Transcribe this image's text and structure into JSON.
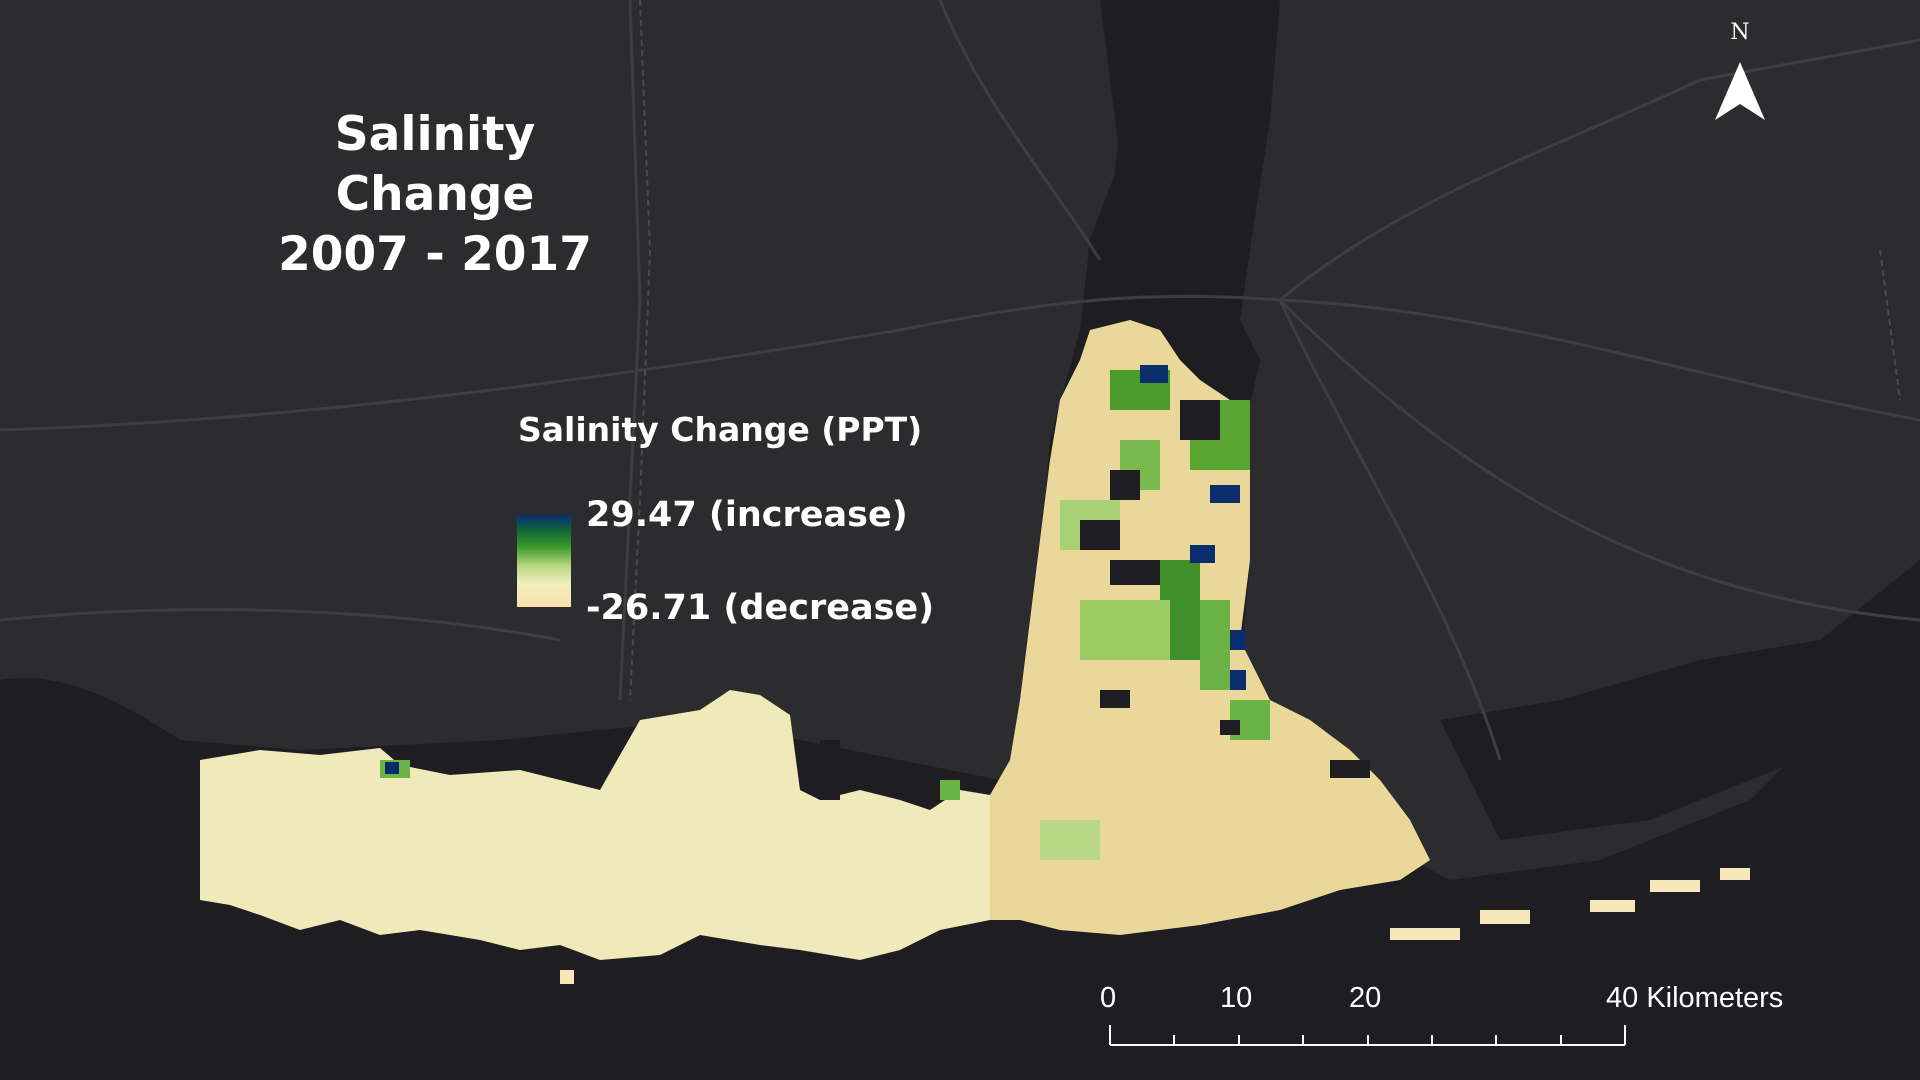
{
  "map": {
    "title_line1": "Salinity Change",
    "title_line2": "2007 - 2017",
    "colors": {
      "background_land": "#2c2c2e",
      "water": "#1e1e22",
      "roads": "#3e3e42",
      "borders": "#4a4a50",
      "ramp_high": "#0b2d6e",
      "ramp_mid": "#3f9a2a",
      "ramp_low": "#fbe0ad"
    }
  },
  "legend": {
    "title": "Salinity Change (PPT)",
    "high_label": "29.47 (increase)",
    "low_label": "-26.71 (decrease)"
  },
  "north_arrow": {
    "label": "N",
    "icon": "north-arrow-icon"
  },
  "scale_bar": {
    "labels": [
      "0",
      "10",
      "20",
      "40 Kilometers"
    ]
  }
}
